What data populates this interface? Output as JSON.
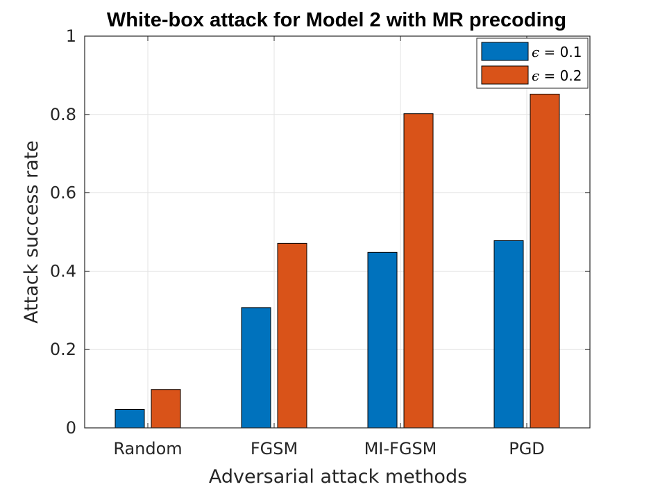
{
  "chart_data": {
    "type": "bar",
    "title": "White-box attack for Model 2 with MR precoding",
    "xlabel": "Adversarial attack methods",
    "ylabel": "Attack success rate",
    "categories": [
      "Random",
      "FGSM",
      "MI-FGSM",
      "PGD"
    ],
    "ylim": [
      0,
      1
    ],
    "yticks": [
      "0",
      "0.2",
      "0.4",
      "0.6",
      "0.8",
      "1"
    ],
    "ytick_values": [
      0,
      0.2,
      0.4,
      0.6,
      0.8,
      1
    ],
    "grid": true,
    "legend_position": "top-right",
    "series": [
      {
        "name": "ε = 0.1",
        "legend_symbol": "ϵ",
        "legend_text": " = 0.1",
        "color": "#0072BD",
        "values": [
          0.047,
          0.307,
          0.448,
          0.478
        ]
      },
      {
        "name": "ε = 0.2",
        "legend_symbol": "ϵ",
        "legend_text": " = 0.2",
        "color": "#D95319",
        "values": [
          0.098,
          0.471,
          0.802,
          0.852
        ]
      }
    ]
  }
}
